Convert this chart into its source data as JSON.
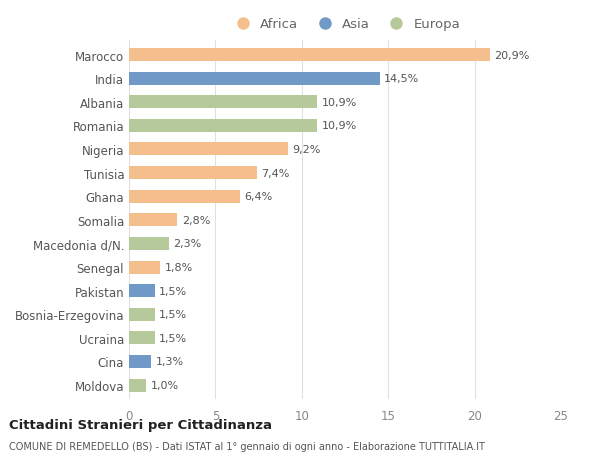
{
  "countries": [
    "Marocco",
    "India",
    "Albania",
    "Romania",
    "Nigeria",
    "Tunisia",
    "Ghana",
    "Somalia",
    "Macedonia d/N.",
    "Senegal",
    "Pakistan",
    "Bosnia-Erzegovina",
    "Ucraina",
    "Cina",
    "Moldova"
  ],
  "values": [
    20.9,
    14.5,
    10.9,
    10.9,
    9.2,
    7.4,
    6.4,
    2.8,
    2.3,
    1.8,
    1.5,
    1.5,
    1.5,
    1.3,
    1.0
  ],
  "labels": [
    "20,9%",
    "14,5%",
    "10,9%",
    "10,9%",
    "9,2%",
    "7,4%",
    "6,4%",
    "2,8%",
    "2,3%",
    "1,8%",
    "1,5%",
    "1,5%",
    "1,5%",
    "1,3%",
    "1,0%"
  ],
  "continents": [
    "Africa",
    "Asia",
    "Europa",
    "Europa",
    "Africa",
    "Africa",
    "Africa",
    "Africa",
    "Europa",
    "Africa",
    "Asia",
    "Europa",
    "Europa",
    "Asia",
    "Europa"
  ],
  "colors": {
    "Africa": "#F5BE8D",
    "Asia": "#7199C8",
    "Europa": "#B5C99A"
  },
  "xlim": [
    0,
    25
  ],
  "xticks": [
    0,
    5,
    10,
    15,
    20,
    25
  ],
  "title": "Cittadini Stranieri per Cittadinanza",
  "subtitle": "COMUNE DI REMEDELLO (BS) - Dati ISTAT al 1° gennaio di ogni anno - Elaborazione TUTTITALIA.IT",
  "bg_color": "#ffffff",
  "grid_color": "#e0e0e0",
  "label_fontsize": 8.0,
  "bar_height": 0.55
}
